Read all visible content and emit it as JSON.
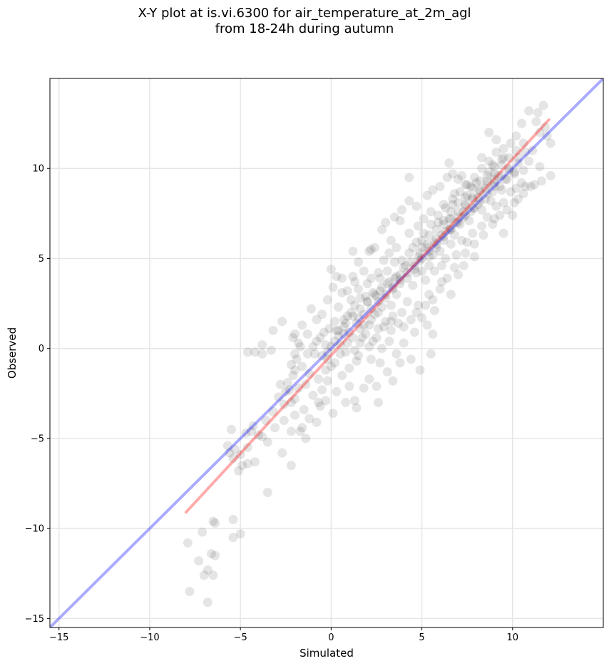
{
  "chart_data": {
    "type": "scatter",
    "title": "X-Y plot at is.vi.6300 for air_temperature_at_2m_agl",
    "subtitle": "from 18-24h during autumn",
    "xlabel": "Simulated",
    "ylabel": "Observed",
    "xlim": [
      -15.5,
      15
    ],
    "ylim": [
      -15.5,
      15
    ],
    "xticks": [
      -15,
      -10,
      -5,
      0,
      5,
      10
    ],
    "yticks": [
      -15,
      -10,
      -5,
      0,
      5,
      10
    ],
    "xtick_labels": [
      "−15",
      "−10",
      "−5",
      "0",
      "5",
      "10"
    ],
    "ytick_labels": [
      "−15",
      "−10",
      "−5",
      "0",
      "5",
      "10"
    ],
    "grid": true,
    "point_color": "#000000",
    "point_alpha": 0.1,
    "identity_line": {
      "x": [
        -15.5,
        15
      ],
      "y": [
        -15.5,
        15
      ],
      "color": "#0000ff",
      "alpha": 0.33
    },
    "fit_line": {
      "x": [
        -8,
        12
      ],
      "y": [
        -9.1,
        12.7
      ],
      "color": "#ff0000",
      "alpha": 0.33
    },
    "points": [
      [
        -7.8,
        -13.5
      ],
      [
        -6.8,
        -14.1
      ],
      [
        -7,
        -12.6
      ],
      [
        -6.5,
        -12.6
      ],
      [
        -6.8,
        -12.3
      ],
      [
        -7.3,
        -11.8
      ],
      [
        -6.6,
        -11.4
      ],
      [
        -6.4,
        -11.5
      ],
      [
        -7.9,
        -10.8
      ],
      [
        -7.1,
        -10.2
      ],
      [
        -6.4,
        -9.7
      ],
      [
        -6.5,
        -9.6
      ],
      [
        -5.4,
        -10.5
      ],
      [
        -5.0,
        -10.3
      ],
      [
        -5.4,
        -9.5
      ],
      [
        -3.5,
        -8.0
      ],
      [
        -5.1,
        -6.8
      ],
      [
        -4.9,
        -6.5
      ],
      [
        -4.6,
        -6.4
      ],
      [
        -4.2,
        -6.3
      ],
      [
        -2.2,
        -6.5
      ],
      [
        -5.4,
        -6.1
      ],
      [
        -5.6,
        -5.8
      ],
      [
        -5.3,
        -5.6
      ],
      [
        -5.7,
        -5.4
      ],
      [
        -5.5,
        -4.5
      ],
      [
        -4.7,
        -4.7
      ],
      [
        -4.4,
        -4.6
      ],
      [
        -4.3,
        -4.3
      ],
      [
        -3.8,
        -4.9
      ],
      [
        -3.5,
        -5.2
      ],
      [
        -2.7,
        -5.8
      ],
      [
        -2.2,
        -4.6
      ],
      [
        -1.7,
        -4.6
      ],
      [
        -1.6,
        -4.4
      ],
      [
        -1.4,
        -5.0
      ],
      [
        -0.8,
        -4.1
      ],
      [
        -2.6,
        -4.0
      ],
      [
        -2.3,
        -2.3
      ],
      [
        -2.5,
        -2.4
      ],
      [
        -2.0,
        -2.8
      ],
      [
        -2.2,
        -3.0
      ],
      [
        -1.8,
        -2.2
      ],
      [
        -1.4,
        -2.0
      ],
      [
        -2.1,
        -1.5
      ],
      [
        -2.0,
        -1.2
      ],
      [
        -1.6,
        -1.0
      ],
      [
        -2.2,
        -0.9
      ],
      [
        -1.9,
        -0.6
      ],
      [
        -2.0,
        -0.3
      ],
      [
        -3.8,
        0.2
      ],
      [
        -3.3,
        -0.1
      ],
      [
        -3.2,
        1.0
      ],
      [
        -2.7,
        1.5
      ],
      [
        -2.0,
        0.8
      ],
      [
        -2.1,
        0.6
      ],
      [
        -4.6,
        -0.2
      ],
      [
        -4.2,
        -0.2
      ],
      [
        -3.8,
        -0.3
      ],
      [
        -1.6,
        1.3
      ],
      [
        -0.8,
        0.4
      ],
      [
        -1.0,
        0.1
      ],
      [
        -0.6,
        0.6
      ],
      [
        -0.3,
        0.2
      ],
      [
        -0.2,
        -0.6
      ],
      [
        0.0,
        -1.0
      ],
      [
        -0.7,
        -1.7
      ],
      [
        -0.5,
        -2.3
      ],
      [
        0.1,
        -3.6
      ],
      [
        1.3,
        -2.9
      ],
      [
        1.4,
        -3.3
      ],
      [
        1.8,
        -2.2
      ],
      [
        2.6,
        -3.0
      ],
      [
        2.5,
        -2.1
      ],
      [
        3.1,
        -1.3
      ],
      [
        3.4,
        -1.8
      ],
      [
        4.9,
        -1.2
      ],
      [
        5.5,
        -0.3
      ],
      [
        0.3,
        4.0
      ],
      [
        0.0,
        4.4
      ],
      [
        1.2,
        5.4
      ],
      [
        2.1,
        5.4
      ],
      [
        2.2,
        5.5
      ],
      [
        3.0,
        7.0
      ],
      [
        3.5,
        7.3
      ],
      [
        3.8,
        7.1
      ],
      [
        4.3,
        8.2
      ],
      [
        4.3,
        9.5
      ],
      [
        6.5,
        10.3
      ],
      [
        6.7,
        9.7
      ],
      [
        7.9,
        5.1
      ],
      [
        11.5,
        10.1
      ],
      [
        11.5,
        12.0
      ],
      [
        11.7,
        13.5
      ],
      [
        11.4,
        13.1
      ],
      [
        12.1,
        11.4
      ],
      [
        10.9,
        13.2
      ],
      [
        11.8,
        12.3
      ],
      [
        11.3,
        12.6
      ],
      [
        11.9,
        11.8
      ],
      [
        5.6,
        8.8
      ],
      [
        8.7,
        12.0
      ],
      [
        9.1,
        11.6
      ],
      [
        9.9,
        11.4
      ],
      [
        10.3,
        10.6
      ],
      [
        10.2,
        11.8
      ],
      [
        10.5,
        12.5
      ],
      [
        8.3,
        10.6
      ],
      [
        7.4,
        9.1
      ],
      [
        7.2,
        9.6
      ],
      [
        9.0,
        7.2
      ],
      [
        10.0,
        7.4
      ],
      [
        9.5,
        6.4
      ],
      [
        10.3,
        8.3
      ],
      [
        10.7,
        9.0
      ],
      [
        11.2,
        9.1
      ],
      [
        11.6,
        9.3
      ],
      [
        12.1,
        9.6
      ],
      [
        6.6,
        3.0
      ],
      [
        5.7,
        2.1
      ],
      [
        6.1,
        3.7
      ],
      [
        5.3,
        1.3
      ],
      [
        5.6,
        0.8
      ],
      [
        4.0,
        0.3
      ],
      [
        4.4,
        -0.6
      ],
      [
        3.8,
        -0.8
      ],
      [
        2.8,
        0.0
      ],
      [
        3.2,
        0.4
      ],
      [
        2.2,
        -0.6
      ],
      [
        1.1,
        2.0
      ],
      [
        0.7,
        1.2
      ],
      [
        1.5,
        1.7
      ],
      [
        0.9,
        1.8
      ],
      [
        1.3,
        2.4
      ],
      [
        1.8,
        1.9
      ],
      [
        1.6,
        1.1
      ],
      [
        2.0,
        2.6
      ],
      [
        2.4,
        1.9
      ],
      [
        2.5,
        2.9
      ],
      [
        2.8,
        2.3
      ],
      [
        0.4,
        0.7
      ],
      [
        0.5,
        0.2
      ],
      [
        0.8,
        -0.2
      ],
      [
        1.2,
        0.6
      ],
      [
        1.9,
        0.8
      ],
      [
        2.1,
        1.3
      ],
      [
        2.3,
        0.4
      ],
      [
        1.5,
        -0.4
      ],
      [
        0.2,
        1.5
      ],
      [
        0.4,
        2.3
      ],
      [
        0.6,
        3.1
      ],
      [
        0.9,
        3.2
      ],
      [
        1.3,
        3.7
      ],
      [
        1.6,
        2.8
      ],
      [
        2.0,
        3.6
      ],
      [
        2.7,
        3.2
      ],
      [
        3.1,
        3.6
      ],
      [
        3.3,
        2.4
      ],
      [
        3.6,
        3.0
      ],
      [
        3.0,
        1.5
      ],
      [
        3.4,
        1.8
      ],
      [
        3.9,
        2.0
      ],
      [
        4.2,
        2.6
      ],
      [
        4.5,
        3.5
      ],
      [
        3.8,
        4.1
      ],
      [
        4.1,
        4.6
      ],
      [
        3.5,
        4.8
      ],
      [
        4.7,
        4.2
      ],
      [
        4.9,
        4.9
      ],
      [
        5.2,
        3.8
      ],
      [
        5.4,
        4.6
      ],
      [
        5.0,
        5.6
      ],
      [
        5.3,
        5.8
      ],
      [
        5.6,
        5.2
      ],
      [
        5.8,
        6.1
      ],
      [
        6.0,
        5.4
      ],
      [
        6.3,
        6.5
      ],
      [
        5.9,
        7.0
      ],
      [
        6.5,
        7.2
      ],
      [
        6.8,
        6.3
      ],
      [
        7.1,
        6.9
      ],
      [
        7.3,
        7.6
      ],
      [
        6.7,
        8.0
      ],
      [
        7.6,
        7.1
      ],
      [
        7.9,
        7.8
      ],
      [
        7.5,
        8.5
      ],
      [
        8.1,
        8.4
      ],
      [
        8.3,
        7.7
      ],
      [
        8.5,
        8.9
      ],
      [
        8.8,
        8.2
      ],
      [
        8.0,
        9.2
      ],
      [
        9.0,
        9.0
      ],
      [
        9.2,
        9.6
      ],
      [
        8.7,
        9.8
      ],
      [
        9.4,
        8.8
      ],
      [
        9.6,
        9.4
      ],
      [
        9.8,
        10.0
      ],
      [
        10.1,
        9.7
      ],
      [
        10.3,
        10.3
      ],
      [
        9.5,
        10.6
      ],
      [
        8.9,
        10.2
      ],
      [
        10.5,
        9.2
      ],
      [
        10.7,
        10.9
      ],
      [
        6.1,
        4.6
      ],
      [
        6.3,
        5.0
      ],
      [
        5.7,
        4.3
      ],
      [
        6.6,
        5.8
      ],
      [
        6.9,
        5.2
      ],
      [
        7.2,
        6.0
      ],
      [
        7.5,
        5.9
      ],
      [
        4.5,
        5.6
      ],
      [
        4.3,
        6.4
      ],
      [
        4.8,
        6.8
      ],
      [
        5.1,
        7.2
      ],
      [
        5.5,
        7.6
      ],
      [
        6.2,
        8.0
      ],
      [
        6.8,
        8.6
      ],
      [
        7.0,
        9.4
      ],
      [
        7.7,
        9.0
      ],
      [
        3.6,
        5.6
      ],
      [
        2.9,
        4.9
      ],
      [
        2.6,
        4.2
      ],
      [
        2.2,
        3.9
      ],
      [
        1.8,
        4.3
      ],
      [
        1.5,
        4.8
      ],
      [
        3.3,
        6.0
      ],
      [
        2.4,
        5.6
      ],
      [
        -0.3,
        -1.2
      ],
      [
        0.2,
        -0.8
      ],
      [
        0.6,
        -1.5
      ],
      [
        1.0,
        -1.1
      ],
      [
        1.4,
        -0.7
      ],
      [
        1.0,
        -2.1
      ],
      [
        0.3,
        -2.4
      ],
      [
        -0.2,
        -1.8
      ],
      [
        -0.9,
        -0.3
      ],
      [
        -0.4,
        0.9
      ],
      [
        -1.2,
        -1.4
      ],
      [
        -1.3,
        -0.3
      ],
      [
        -1.0,
        -2.6
      ],
      [
        -0.6,
        -3.2
      ],
      [
        -1.5,
        -3.4
      ],
      [
        -0.3,
        -2.9
      ],
      [
        0.8,
        -3.0
      ],
      [
        2.1,
        -1.7
      ],
      [
        2.7,
        -0.8
      ],
      [
        3.6,
        -0.3
      ],
      [
        4.6,
        0.9
      ],
      [
        5.0,
        1.7
      ],
      [
        4.8,
        2.4
      ],
      [
        5.4,
        3.0
      ],
      [
        7.0,
        4.1
      ],
      [
        7.3,
        4.6
      ],
      [
        7.8,
        6.4
      ],
      [
        8.3,
        6.8
      ],
      [
        8.6,
        7.3
      ],
      [
        9.1,
        7.9
      ],
      [
        9.5,
        8.1
      ],
      [
        9.9,
        8.7
      ],
      [
        10.2,
        8.9
      ],
      [
        10.6,
        9.9
      ],
      [
        10.9,
        10.4
      ],
      [
        11.1,
        11.0
      ],
      [
        3.9,
        7.7
      ],
      [
        4.7,
        7.9
      ],
      [
        5.3,
        8.5
      ],
      [
        6.0,
        9.0
      ],
      [
        6.4,
        9.5
      ],
      [
        2.8,
        6.6
      ],
      [
        3.2,
        5.3
      ],
      [
        1.2,
        4.0
      ],
      [
        0.6,
        3.9
      ],
      [
        0.1,
        3.4
      ],
      [
        -0.2,
        2.7
      ],
      [
        -0.5,
        1.9
      ],
      [
        -0.8,
        1.6
      ],
      [
        -0.1,
        1.1
      ],
      [
        -1.1,
        2.2
      ],
      [
        -1.3,
        0.8
      ],
      [
        -1.8,
        0.3
      ],
      [
        -2.4,
        -1.9
      ],
      [
        -2.9,
        -2.7
      ],
      [
        -2.6,
        -3.1
      ],
      [
        -3.2,
        -3.5
      ],
      [
        -3.6,
        -4.0
      ],
      [
        -4.0,
        -4.8
      ],
      [
        -4.6,
        -5.5
      ],
      [
        -5.0,
        -5.9
      ],
      [
        -3.1,
        -4.4
      ],
      [
        -1.2,
        -3.9
      ],
      [
        -0.7,
        -3.0
      ],
      [
        -2.0,
        -3.7
      ],
      [
        -2.8,
        -2.0
      ],
      [
        -1.7,
        0.1
      ],
      [
        -0.5,
        -0.4
      ],
      [
        0.7,
        0.8
      ],
      [
        1.6,
        0.3
      ],
      [
        2.6,
        1.1
      ],
      [
        3.3,
        1.0
      ],
      [
        3.7,
        1.4
      ],
      [
        4.0,
        1.2
      ],
      [
        4.4,
        1.6
      ],
      [
        4.7,
        2.0
      ],
      [
        5.2,
        2.4
      ],
      [
        5.6,
        2.7
      ],
      [
        6.0,
        3.3
      ],
      [
        6.4,
        3.9
      ],
      [
        6.8,
        4.5
      ],
      [
        7.4,
        5.3
      ],
      [
        7.9,
        5.8
      ],
      [
        8.4,
        6.3
      ],
      [
        8.9,
        6.9
      ],
      [
        9.3,
        7.4
      ],
      [
        9.7,
        7.7
      ],
      [
        10.1,
        8.1
      ],
      [
        10.6,
        8.6
      ],
      [
        11.0,
        9.0
      ],
      [
        3.0,
        2.8
      ],
      [
        3.4,
        3.3
      ],
      [
        3.8,
        3.6
      ],
      [
        4.2,
        3.9
      ],
      [
        4.6,
        4.4
      ],
      [
        5.0,
        4.3
      ],
      [
        5.4,
        5.1
      ],
      [
        5.8,
        5.6
      ],
      [
        6.2,
        6.0
      ],
      [
        6.6,
        6.7
      ],
      [
        7.0,
        7.3
      ],
      [
        7.4,
        7.9
      ],
      [
        7.8,
        8.3
      ],
      [
        8.2,
        8.8
      ],
      [
        8.6,
        9.3
      ],
      [
        9.0,
        9.7
      ],
      [
        9.4,
        10.2
      ],
      [
        9.8,
        10.6
      ],
      [
        10.2,
        11.0
      ],
      [
        10.6,
        11.4
      ],
      [
        1.0,
        0.9
      ],
      [
        1.4,
        1.4
      ],
      [
        1.8,
        1.3
      ],
      [
        2.2,
        1.6
      ],
      [
        2.6,
        2.0
      ],
      [
        0.2,
        0.4
      ],
      [
        0.5,
        -0.3
      ],
      [
        0.9,
        0.3
      ],
      [
        1.3,
        -0.1
      ],
      [
        1.7,
        0.6
      ],
      [
        2.1,
        0.1
      ],
      [
        2.5,
        0.6
      ],
      [
        2.9,
        1.2
      ],
      [
        3.3,
        1.5
      ],
      [
        0.0,
        0.1
      ],
      [
        -0.2,
        -0.2
      ],
      [
        0.3,
        1.0
      ],
      [
        0.7,
        1.6
      ],
      [
        1.1,
        2.7
      ],
      [
        1.5,
        3.3
      ],
      [
        1.9,
        2.9
      ],
      [
        2.3,
        3.1
      ],
      [
        2.7,
        3.9
      ],
      [
        3.1,
        4.3
      ],
      [
        3.5,
        3.9
      ],
      [
        3.9,
        4.9
      ],
      [
        4.3,
        5.3
      ],
      [
        4.7,
        5.9
      ],
      [
        5.1,
        6.4
      ],
      [
        5.5,
        6.9
      ],
      [
        5.9,
        7.4
      ],
      [
        6.3,
        7.8
      ],
      [
        6.7,
        8.3
      ],
      [
        7.1,
        8.7
      ],
      [
        7.5,
        9.1
      ],
      [
        7.9,
        9.5
      ],
      [
        8.3,
        10.0
      ],
      [
        8.7,
        10.4
      ],
      [
        9.1,
        10.9
      ],
      [
        9.5,
        11.1
      ],
      [
        6.2,
        7.1
      ],
      [
        6.6,
        7.6
      ],
      [
        7.0,
        8.1
      ],
      [
        7.4,
        8.4
      ],
      [
        7.8,
        8.9
      ],
      [
        8.2,
        9.3
      ],
      [
        8.6,
        9.6
      ],
      [
        9.0,
        10.1
      ],
      [
        9.4,
        10.5
      ],
      [
        5.0,
        6.0
      ],
      [
        5.4,
        6.3
      ],
      [
        5.8,
        6.6
      ],
      [
        6.2,
        6.9
      ],
      [
        6.6,
        7.2
      ],
      [
        7.0,
        7.6
      ],
      [
        7.4,
        8.0
      ],
      [
        7.8,
        8.4
      ],
      [
        8.2,
        8.7
      ],
      [
        8.6,
        9.1
      ],
      [
        9.0,
        9.4
      ],
      [
        4.9,
        5.3
      ],
      [
        5.3,
        5.6
      ],
      [
        5.7,
        5.9
      ],
      [
        6.1,
        6.3
      ],
      [
        6.5,
        6.6
      ],
      [
        6.9,
        7.0
      ],
      [
        7.3,
        7.3
      ],
      [
        7.7,
        7.6
      ],
      [
        8.1,
        8.0
      ],
      [
        8.5,
        8.3
      ],
      [
        8.9,
        8.7
      ],
      [
        9.3,
        9.0
      ],
      [
        9.7,
        9.4
      ],
      [
        10.1,
        9.8
      ],
      [
        4.0,
        4.5
      ],
      [
        4.4,
        4.8
      ],
      [
        4.8,
        5.1
      ],
      [
        3.6,
        4.0
      ],
      [
        3.2,
        3.7
      ],
      [
        2.8,
        3.4
      ],
      [
        2.4,
        3.0
      ],
      [
        2.0,
        2.6
      ],
      [
        1.6,
        2.2
      ],
      [
        1.2,
        1.8
      ],
      [
        0.8,
        1.4
      ],
      [
        0.4,
        1.0
      ],
      [
        2.2,
        2.2
      ],
      [
        2.6,
        2.6
      ],
      [
        3.0,
        3.0
      ],
      [
        3.4,
        3.4
      ],
      [
        3.8,
        3.8
      ],
      [
        4.2,
        4.2
      ],
      [
        4.6,
        4.6
      ],
      [
        5.0,
        5.0
      ],
      [
        5.4,
        5.4
      ],
      [
        5.8,
        5.8
      ],
      [
        6.2,
        6.2
      ],
      [
        6.6,
        6.6
      ],
      [
        7.0,
        7.0
      ],
      [
        7.4,
        7.4
      ],
      [
        7.8,
        7.8
      ],
      [
        8.2,
        8.2
      ],
      [
        8.6,
        8.6
      ],
      [
        9.0,
        9.2
      ],
      [
        9.4,
        9.6
      ],
      [
        9.8,
        9.9
      ]
    ]
  }
}
